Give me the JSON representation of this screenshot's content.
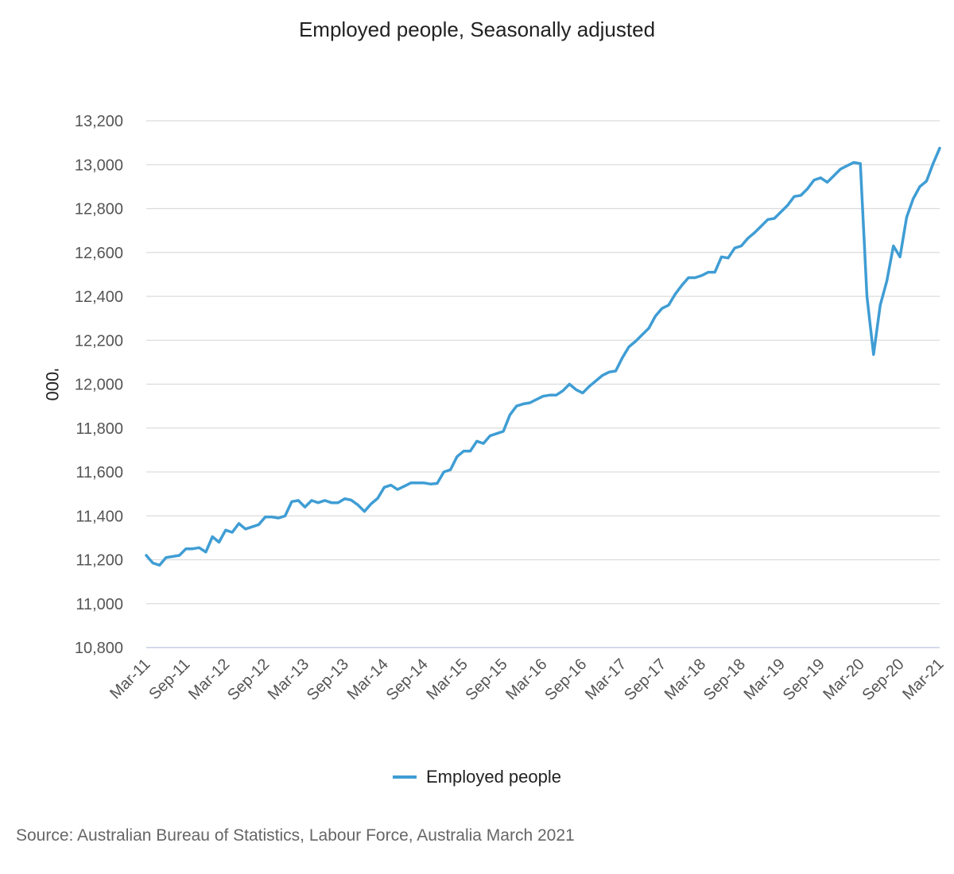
{
  "chart_data": {
    "type": "line",
    "title": "Employed people, Seasonally adjusted",
    "ylabel": "'000",
    "xlabel": "",
    "ylim": [
      10800,
      13200
    ],
    "yticks": [
      10800,
      11000,
      11200,
      11400,
      11600,
      11800,
      12000,
      12200,
      12400,
      12600,
      12800,
      13000,
      13200
    ],
    "ytick_labels": [
      "10,800",
      "11,000",
      "11,200",
      "11,400",
      "11,600",
      "11,800",
      "12,000",
      "12,200",
      "12,400",
      "12,600",
      "12,800",
      "13,000",
      "13,200"
    ],
    "xtick_labels": [
      "Mar-11",
      "Sep-11",
      "Mar-12",
      "Sep-12",
      "Mar-13",
      "Sep-13",
      "Mar-14",
      "Sep-14",
      "Mar-15",
      "Sep-15",
      "Mar-16",
      "Sep-16",
      "Mar-17",
      "Sep-17",
      "Mar-18",
      "Sep-18",
      "Mar-19",
      "Sep-19",
      "Mar-20",
      "Sep-20",
      "Mar-21"
    ],
    "xtick_interval_months": 6,
    "grid": true,
    "legend_position": "bottom",
    "series": [
      {
        "name": "Employed people",
        "color": "#3f9dd4",
        "start": "Mar-11",
        "frequency": "monthly",
        "values": [
          11220,
          11185,
          11175,
          11210,
          11215,
          11220,
          11250,
          11250,
          11255,
          11235,
          11305,
          11280,
          11335,
          11325,
          11365,
          11340,
          11350,
          11360,
          11395,
          11395,
          11390,
          11400,
          11465,
          11470,
          11440,
          11470,
          11460,
          11470,
          11460,
          11460,
          11478,
          11472,
          11450,
          11420,
          11455,
          11480,
          11530,
          11540,
          11520,
          11535,
          11550,
          11550,
          11550,
          11545,
          11548,
          11600,
          11610,
          11670,
          11695,
          11695,
          11740,
          11730,
          11765,
          11775,
          11785,
          11860,
          11900,
          11910,
          11915,
          11930,
          11945,
          11950,
          11950,
          11970,
          12000,
          11975,
          11960,
          11990,
          12015,
          12040,
          12055,
          12060,
          12120,
          12170,
          12195,
          12225,
          12255,
          12310,
          12345,
          12360,
          12410,
          12450,
          12485,
          12485,
          12495,
          12510,
          12510,
          12580,
          12575,
          12620,
          12630,
          12665,
          12690,
          12720,
          12750,
          12755,
          12785,
          12815,
          12855,
          12860,
          12890,
          12930,
          12940,
          12920,
          12950,
          12980,
          12995,
          13010,
          13005,
          12400,
          12135,
          12360,
          12470,
          12630,
          12580,
          12760,
          12845,
          12900,
          12925,
          13005,
          13075
        ]
      }
    ],
    "source": "Source: Australian Bureau of Statistics, Labour Force, Australia March 2021"
  }
}
